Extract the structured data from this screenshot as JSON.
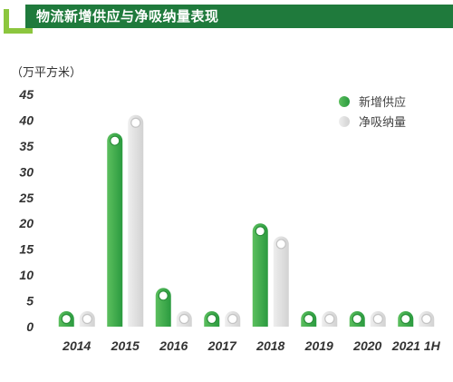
{
  "header": {
    "title": "物流新增供应与净吸纳量表现"
  },
  "colors": {
    "header_bg": "#1f7a3c",
    "accent": "#8cc63e",
    "supply": "#3ea84a",
    "absorption": "#d6d6d6"
  },
  "chart_data": {
    "type": "bar",
    "title": "",
    "ylabel": "（万平方米）",
    "xlabel": "",
    "ylim": [
      0,
      45
    ],
    "yticks": [
      "0",
      "5",
      "10",
      "15",
      "20",
      "25",
      "30",
      "35",
      "40",
      "45"
    ],
    "categories": [
      "2014",
      "2015",
      "2016",
      "2017",
      "2018",
      "2019",
      "2020",
      "2021 1H"
    ],
    "series": [
      {
        "name": "新增供应",
        "color": "#3ea84a",
        "values": [
          0,
          37.5,
          7.5,
          0,
          20,
          0,
          0,
          0
        ]
      },
      {
        "name": "净吸纳量",
        "color": "#d6d6d6",
        "values": [
          1.3,
          41,
          1.2,
          0,
          17.5,
          2.8,
          0,
          0.4
        ]
      }
    ],
    "legend": "top-right",
    "grid": false
  }
}
